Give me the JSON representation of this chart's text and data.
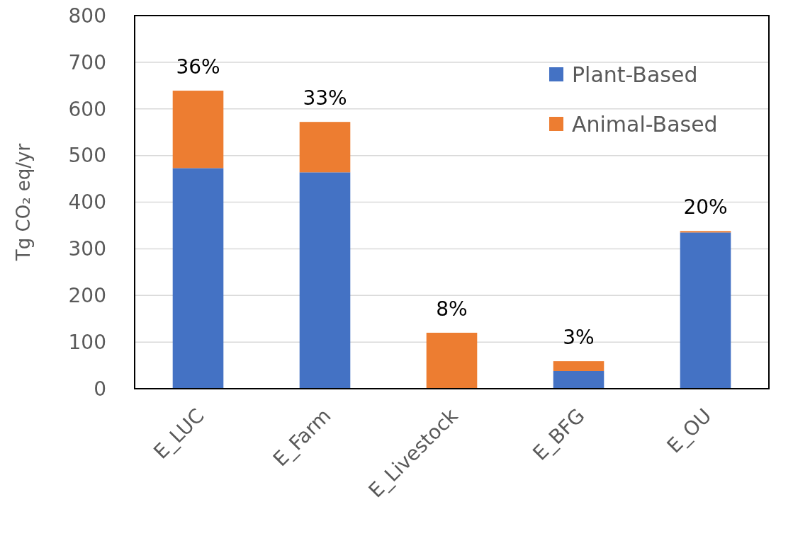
{
  "chart_data": {
    "type": "bar",
    "stacked": true,
    "ylabel": "Tg CO₂ eq/yr",
    "categories": [
      "E_LUC",
      "E_Farm",
      "E_Livestock",
      "E_BFG",
      "E_OU"
    ],
    "series": [
      {
        "name": "Plant-Based",
        "color": "#4472c4",
        "values": [
          473,
          464,
          0,
          38,
          335
        ]
      },
      {
        "name": "Animal-Based",
        "color": "#ed7d31",
        "values": [
          166,
          108,
          120,
          21,
          3
        ]
      }
    ],
    "annotations": [
      {
        "text": "36%",
        "x": "E_LUC",
        "y": 639
      },
      {
        "text": "33%",
        "x": "E_Farm",
        "y": 572
      },
      {
        "text": "8%",
        "x": "E_Livestock",
        "y": 120
      },
      {
        "text": "3%",
        "x": "E_BFG",
        "y": 59
      },
      {
        "text": "20%",
        "x": "E_OU",
        "y": 338
      }
    ],
    "ylim": [
      0,
      800
    ],
    "yticks": [
      0,
      100,
      200,
      300,
      400,
      500,
      600,
      700,
      800
    ],
    "grid": "y",
    "legend": "top right"
  }
}
